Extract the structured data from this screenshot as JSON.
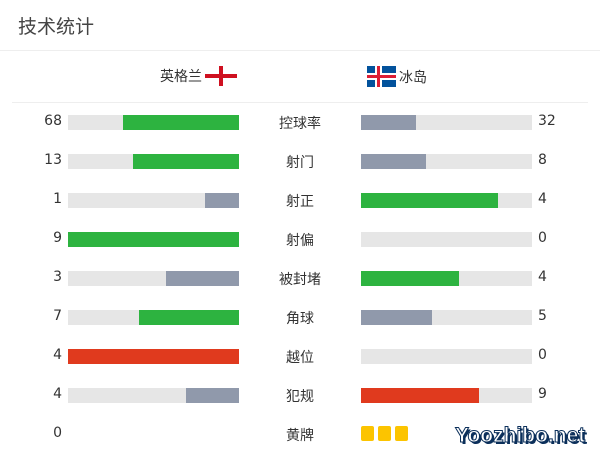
{
  "title": "技术统计",
  "home": {
    "name": "英格兰",
    "flag": "england-flag-icon"
  },
  "away": {
    "name": "冰岛",
    "flag": "iceland-flag-icon"
  },
  "colors": {
    "win": "#2db340",
    "lose": "#9099ab",
    "red": "#e03a1e",
    "track": "#e6e6e6",
    "yellow": "#fcc400"
  },
  "stats": [
    {
      "label": "控球率",
      "home": "68",
      "away": "32",
      "home_color": "#2db340",
      "away_color": "#9099ab"
    },
    {
      "label": "射门",
      "home": "13",
      "away": "8",
      "home_color": "#2db340",
      "away_color": "#9099ab"
    },
    {
      "label": "射正",
      "home": "1",
      "away": "4",
      "home_color": "#9099ab",
      "away_color": "#2db340"
    },
    {
      "label": "射偏",
      "home": "9",
      "away": "0",
      "home_color": "#2db340",
      "away_color": "#9099ab"
    },
    {
      "label": "被封堵",
      "home": "3",
      "away": "4",
      "home_color": "#9099ab",
      "away_color": "#2db340"
    },
    {
      "label": "角球",
      "home": "7",
      "away": "5",
      "home_color": "#2db340",
      "away_color": "#9099ab"
    },
    {
      "label": "越位",
      "home": "4",
      "away": "0",
      "home_color": "#e03a1e",
      "away_color": "#9099ab"
    },
    {
      "label": "犯规",
      "home": "4",
      "away": "9",
      "home_color": "#9099ab",
      "away_color": "#e03a1e"
    }
  ],
  "yellow": {
    "label": "黄牌",
    "home": "0",
    "away_cards": 3
  },
  "watermark": "Yoozhibo.net"
}
